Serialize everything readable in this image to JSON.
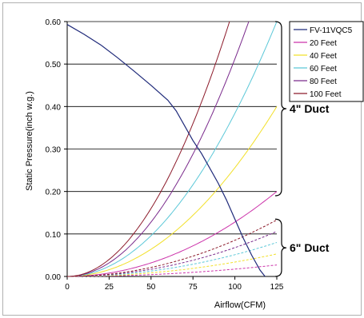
{
  "chart_data": {
    "type": "line",
    "title": "",
    "xlabel": "Airflow(CFM)",
    "ylabel": "Static Pressure(inch w.g.)",
    "xlim": [
      0,
      125
    ],
    "ylim": [
      0,
      0.6
    ],
    "x_ticks": [
      "0",
      "25",
      "50",
      "75",
      "100",
      "125"
    ],
    "y_ticks": [
      "0.00",
      "0.10",
      "0.20",
      "0.30",
      "0.40",
      "0.50",
      "0.60"
    ],
    "grid": "horizontal",
    "legend_position": "top-right",
    "groups": [
      {
        "label": "4\" Duct"
      },
      {
        "label": "6\" Duct"
      }
    ],
    "fan_curve": {
      "name": "FV-11VQC5",
      "color": "#1f2a7a",
      "points": [
        [
          0,
          0.593
        ],
        [
          10,
          0.57
        ],
        [
          20,
          0.545
        ],
        [
          30,
          0.515
        ],
        [
          40,
          0.483
        ],
        [
          50,
          0.45
        ],
        [
          60,
          0.415
        ],
        [
          65,
          0.39
        ],
        [
          70,
          0.355
        ],
        [
          75,
          0.32
        ],
        [
          80,
          0.29
        ],
        [
          85,
          0.255
        ],
        [
          90,
          0.22
        ],
        [
          95,
          0.18
        ],
        [
          100,
          0.135
        ],
        [
          105,
          0.09
        ],
        [
          110,
          0.05
        ],
        [
          115,
          0.015
        ],
        [
          118,
          0.0
        ]
      ]
    },
    "series": [
      {
        "name": "20 Feet",
        "color": "#cc33aa",
        "k4": 0.2,
        "k6": 0.027
      },
      {
        "name": "40 Feet",
        "color": "#f2e02a",
        "k4": 0.4,
        "k6": 0.053
      },
      {
        "name": "60 Feet",
        "color": "#5cc8d8",
        "k4": 0.6,
        "k6": 0.08
      },
      {
        "name": "80 Feet",
        "color": "#7a2a8c",
        "k4": 0.8,
        "k6": 0.106
      },
      {
        "name": "100 Feet",
        "color": "#8c1a2a",
        "k4": 1.0,
        "k6": 0.133
      }
    ]
  }
}
